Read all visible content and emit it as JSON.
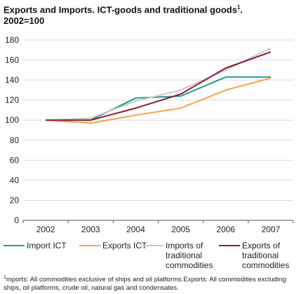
{
  "title": {
    "line1": "Exports and Imports. ICT-goods and traditional goods",
    "sup": "1",
    "line1_end": ".",
    "line2": "2002=100"
  },
  "footnote": {
    "sup": "1",
    "text": "mports: All commodities exclusive of ships and oil platforms.Exports: All commodities excluding ships, oil platforms, crude oil, natural gas and condensates."
  },
  "colors": {
    "import_ict": "#1a9e96",
    "exports_ict": "#f5a347",
    "imports_traditional": "#c8c8c8",
    "exports_traditional": "#8e1d2a",
    "grid": "#d9d9d9",
    "axis": "#555555"
  },
  "chart_data": {
    "type": "line",
    "x": [
      "2002",
      "2003",
      "2004",
      "2005",
      "2006",
      "2007"
    ],
    "ylim": [
      0,
      180
    ],
    "yticks": [
      "0",
      "20",
      "40",
      "60",
      "80",
      "100",
      "120",
      "140",
      "160",
      "180"
    ],
    "grid": true,
    "legend_position": "bottom",
    "series": [
      {
        "name": "Import ICT",
        "color_key": "import_ict",
        "values": [
          100,
          100,
          122,
          124,
          143,
          143
        ]
      },
      {
        "name": "Exports ICT",
        "color_key": "exports_ict",
        "values": [
          100,
          97,
          105,
          112,
          130,
          142
        ]
      },
      {
        "name": "Imports of traditional commodities",
        "color_key": "imports_traditional",
        "values": [
          100,
          102,
          119,
          130,
          150,
          172
        ]
      },
      {
        "name": "Exports of traditional commodities",
        "color_key": "exports_traditional",
        "values": [
          100,
          100,
          112,
          126,
          152,
          168
        ]
      }
    ],
    "legend": [
      {
        "lines": [
          "Import ICT"
        ],
        "color_key": "import_ict"
      },
      {
        "lines": [
          "Exports ICT"
        ],
        "color_key": "exports_ict"
      },
      {
        "lines": [
          "Imports of",
          "traditional",
          "commodities"
        ],
        "color_key": "imports_traditional"
      },
      {
        "lines": [
          "Exports of",
          "traditional",
          "commodities"
        ],
        "color_key": "exports_traditional"
      }
    ]
  }
}
